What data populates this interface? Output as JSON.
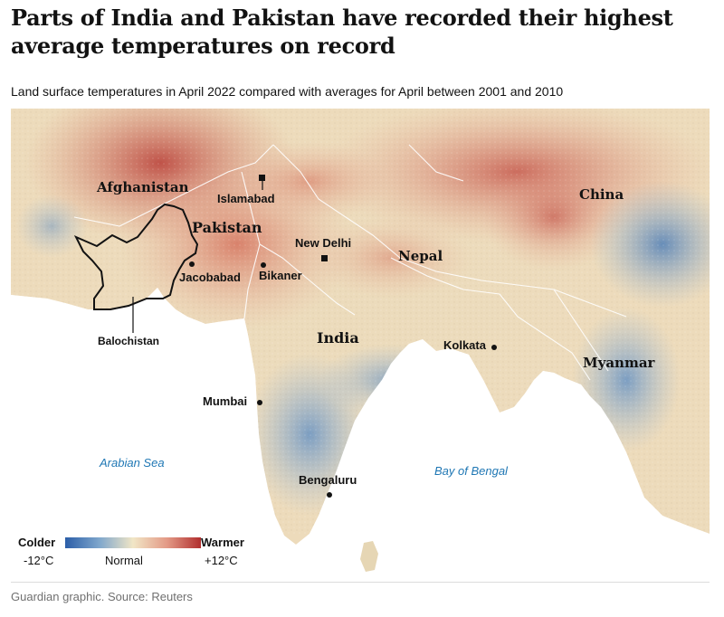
{
  "title": "Parts of India and Pakistan have recorded their highest average temperatures on record",
  "subtitle": "Land surface temperatures in April 2022 compared with averages for April between 2001 and 2010",
  "map": {
    "countries": {
      "afghanistan": "Afghanistan",
      "pakistan": "Pakistan",
      "india": "India",
      "nepal": "Nepal",
      "china": "China",
      "myanmar": "Myanmar"
    },
    "regions": {
      "balochistan": "Balochistan"
    },
    "cities": {
      "islamabad": "Islamabad",
      "new_delhi": "New Delhi",
      "jacobabad": "Jacobabad",
      "bikaner": "Bikaner",
      "kolkata": "Kolkata",
      "mumbai": "Mumbai",
      "bengaluru": "Bengaluru"
    },
    "seas": {
      "arabian_sea": "Arabian Sea",
      "bay_of_bengal": "Bay of Bengal"
    },
    "colors": {
      "cold": "#2b5ea8",
      "normal": "#f1e6c6",
      "warm": "#b12e2e",
      "sea_label": "#1f77b4"
    }
  },
  "legend": {
    "colder": "Colder",
    "colder_value": "-12°C",
    "normal": "Normal",
    "warmer": "Warmer",
    "warmer_value": "+12°C"
  },
  "footer": "Guardian graphic. Source: Reuters"
}
